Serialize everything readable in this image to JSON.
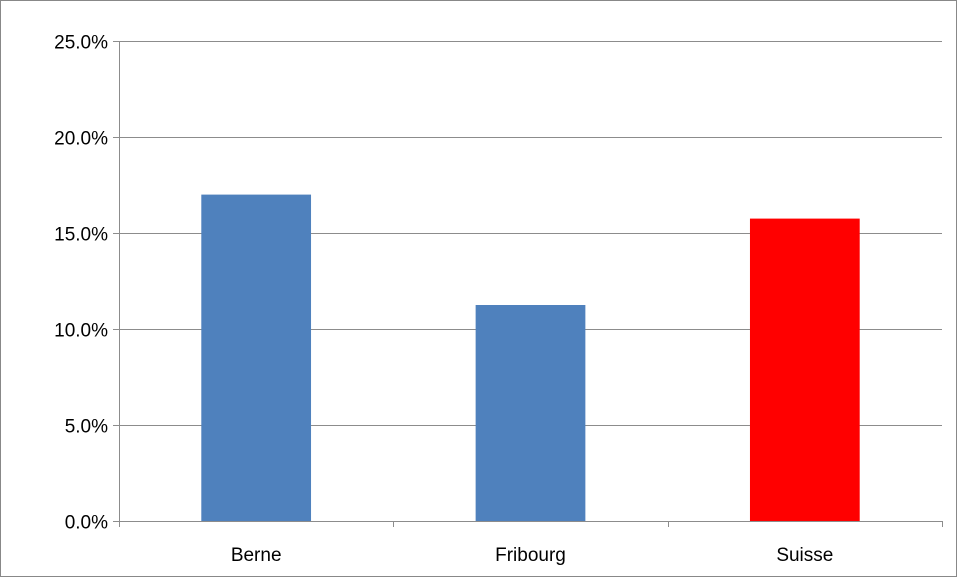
{
  "chart_data": {
    "type": "bar",
    "title": "",
    "xlabel": "",
    "ylabel": "",
    "categories": [
      "Berne",
      "Fribourg",
      "Suisse"
    ],
    "values": [
      17.0,
      11.25,
      15.75
    ],
    "bar_colors": [
      "#4f81bd",
      "#4f81bd",
      "#ff0000"
    ],
    "ylim": [
      0,
      25
    ],
    "y_ticks": [
      0,
      5,
      10,
      15,
      20,
      25
    ],
    "y_tick_labels": [
      "0.0%",
      "5.0%",
      "10.0%",
      "15.0%",
      "20.0%",
      "25.0%"
    ],
    "value_unit": "%",
    "grid": true,
    "legend": "none",
    "gridline_color": "#8c8c8c",
    "axis_color": "#8c8c8c"
  }
}
